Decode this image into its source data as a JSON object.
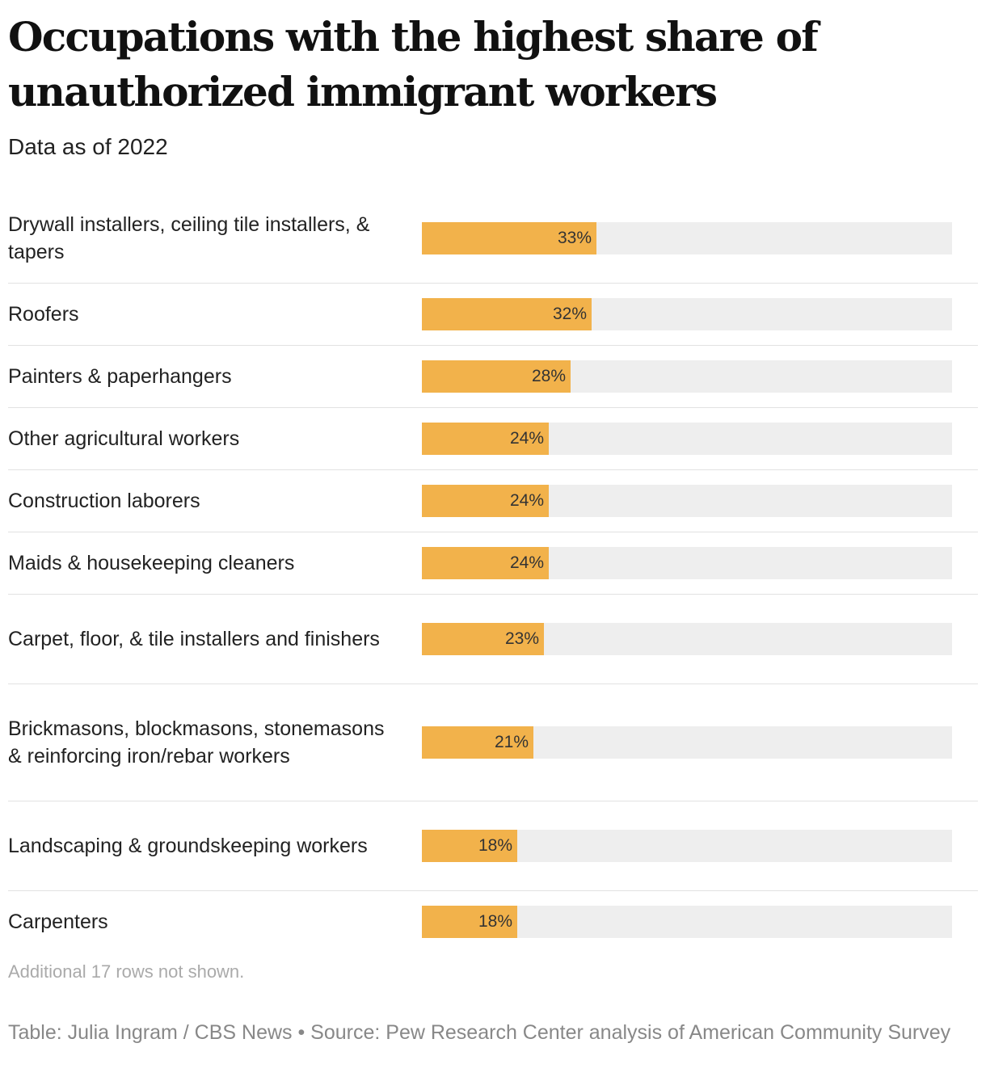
{
  "header": {
    "title": "Occupations with the highest share of unauthorized immigrant workers",
    "subtitle": "Data as of 2022"
  },
  "chart_data": {
    "type": "bar",
    "orientation": "horizontal",
    "title": "Occupations with the highest share of unauthorized immigrant workers",
    "subtitle": "Data as of 2022",
    "categories": [
      "Drywall installers, ceiling tile installers, & tapers",
      "Roofers",
      "Painters & paperhangers",
      "Other agricultural workers",
      "Construction laborers",
      "Maids & housekeeping cleaners",
      "Carpet, floor, & tile installers and finishers",
      "Brickmasons, blockmasons, stonemasons & reinforcing iron/rebar workers",
      "Landscaping & groundskeeping workers",
      "Carpenters"
    ],
    "values": [
      33,
      32,
      28,
      24,
      24,
      24,
      23,
      21,
      18,
      18
    ],
    "value_labels": [
      "33%",
      "32%",
      "28%",
      "24%",
      "24%",
      "24%",
      "23%",
      "21%",
      "18%",
      "18%"
    ],
    "unit": "%",
    "xlim": [
      0,
      100
    ],
    "bar_color": "#f2b24b",
    "track_color": "#eeeeee",
    "grid": false,
    "legend": "none"
  },
  "notes": {
    "rows_hidden": "Additional 17 rows not shown.",
    "footer": "Table: Julia Ingram / CBS News • Source: Pew Research Center analysis of American Community Survey"
  }
}
